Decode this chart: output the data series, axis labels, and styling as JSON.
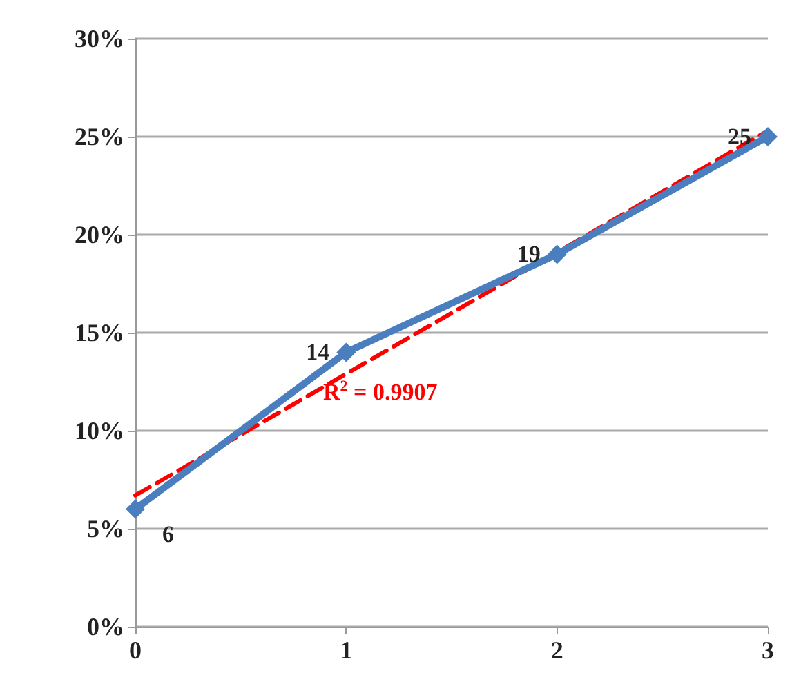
{
  "chart_data": {
    "type": "line",
    "x": [
      0,
      1,
      2,
      3
    ],
    "xlim": [
      0,
      3
    ],
    "xticks": [
      0,
      1,
      2,
      3
    ],
    "ylim": [
      0,
      30
    ],
    "yticks": [
      {
        "value": 0,
        "label": "0%"
      },
      {
        "value": 5,
        "label": "5%"
      },
      {
        "value": 10,
        "label": "10%"
      },
      {
        "value": 15,
        "label": "15%"
      },
      {
        "value": 20,
        "label": "20%"
      },
      {
        "value": 25,
        "label": "25%"
      },
      {
        "value": 30,
        "label": "30%"
      }
    ],
    "series": [
      {
        "color": "#4a7ebf",
        "values": [
          6,
          14,
          19,
          25
        ],
        "marker": "diamond",
        "line_style": "solid",
        "data_labels": true
      },
      {
        "color": "#ff0000",
        "x": [
          0,
          3
        ],
        "values": [
          6.7,
          25.3
        ],
        "marker": "none",
        "line_style": "dashed"
      }
    ],
    "annotations": [
      "R$^{2}$ = 0.9907"
    ],
    "grid": "y"
  }
}
